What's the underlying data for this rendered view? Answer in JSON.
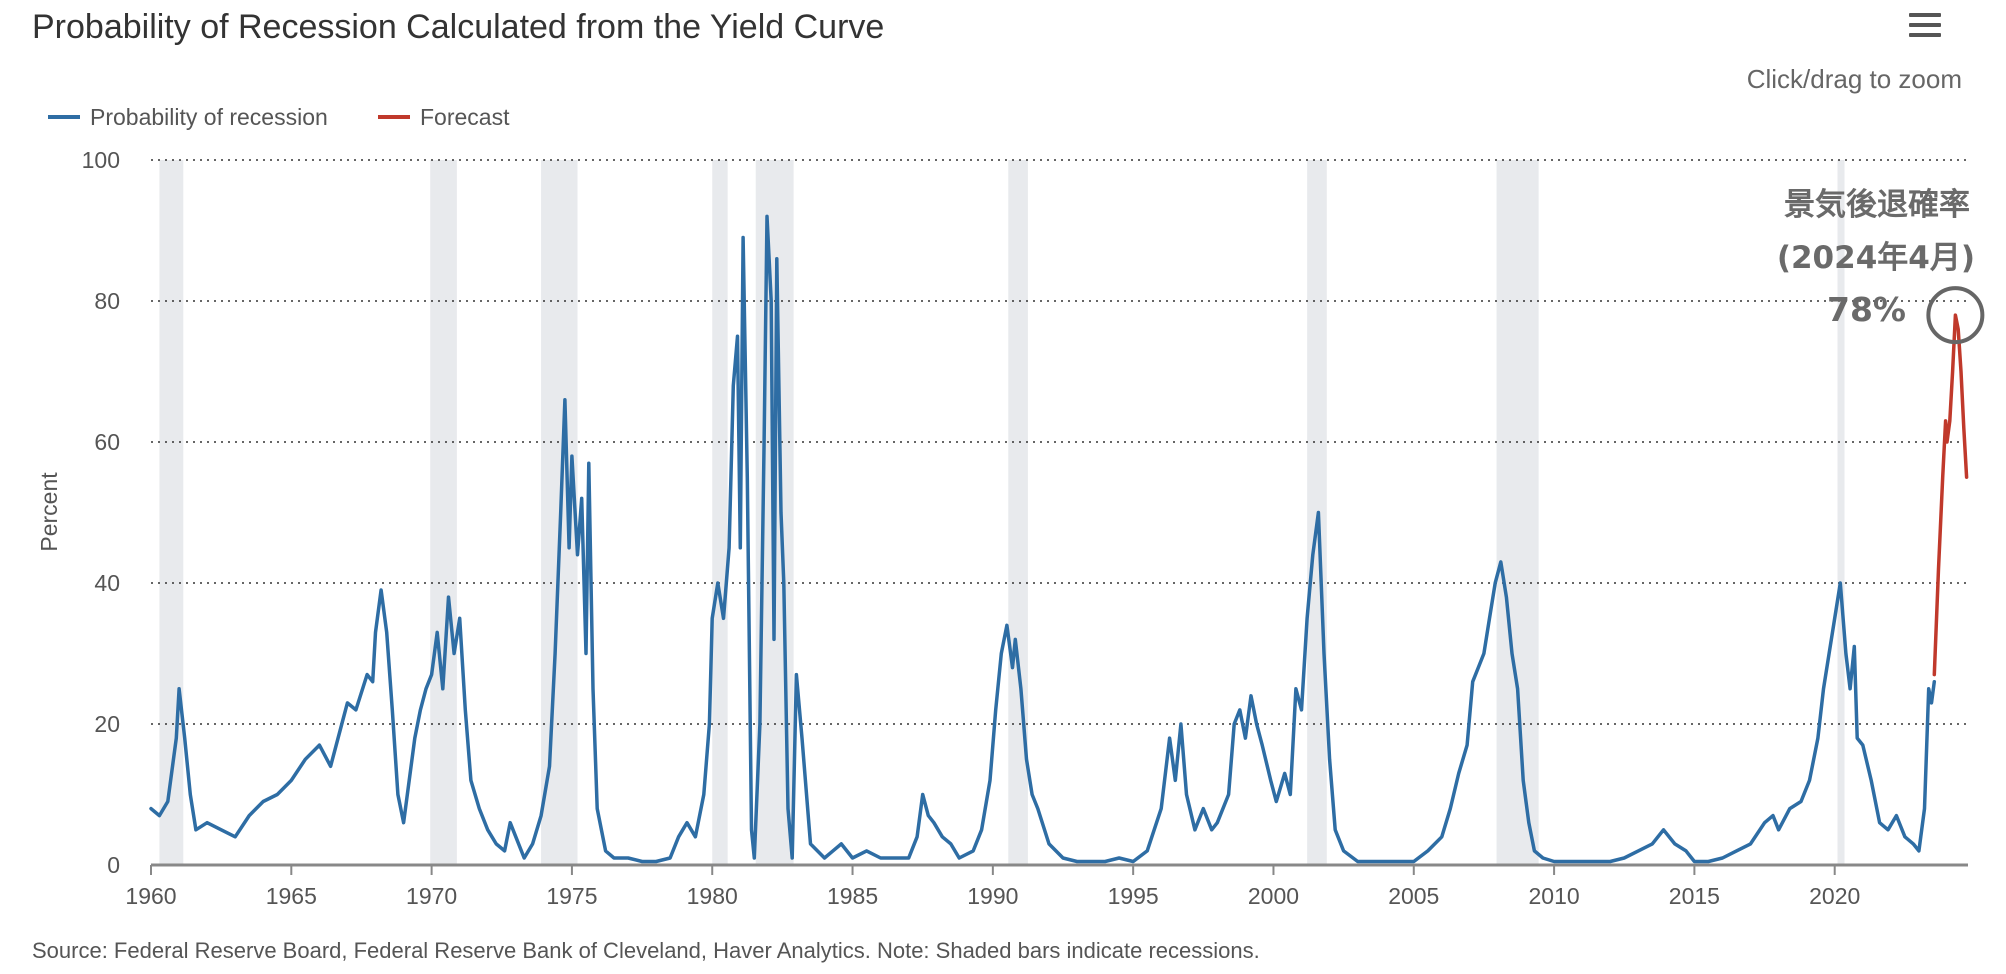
{
  "page": {
    "menu_icon": "hamburger-menu-icon",
    "zoom_hint": "Click/drag to zoom",
    "source_note": "Source: Federal Reserve Board, Federal Reserve Bank of Cleveland, Haver Analytics. Note: Shaded bars indicate recessions."
  },
  "chart_data": {
    "type": "line",
    "title": "Probability of Recession Calculated from the Yield Curve",
    "ylabel": "Percent",
    "xlabel": "",
    "xlim": [
      1960,
      2024.75
    ],
    "ylim": [
      0,
      100
    ],
    "x_ticks": [
      "1960",
      "1965",
      "1970",
      "1975",
      "1980",
      "1985",
      "1990",
      "1995",
      "2000",
      "2005",
      "2010",
      "2015",
      "2020"
    ],
    "y_ticks": [
      "0",
      "20",
      "40",
      "60",
      "80",
      "100"
    ],
    "grid": "horizontal dotted",
    "legend": "top-left",
    "colors": {
      "probability": "#2e6da4",
      "forecast": "#c0392b",
      "recession_band": "#e8eaed",
      "annotation": "#666666"
    },
    "recessions": [
      [
        1960.3,
        1961.15
      ],
      [
        1969.95,
        1970.9
      ],
      [
        1973.9,
        1975.2
      ],
      [
        1980.0,
        1980.55
      ],
      [
        1981.55,
        1982.9
      ],
      [
        1990.55,
        1991.25
      ],
      [
        2001.2,
        2001.9
      ],
      [
        2007.95,
        2009.45
      ],
      [
        2020.1,
        2020.35
      ]
    ],
    "series": [
      {
        "name": "Probability of recession",
        "color": "#2e6da4",
        "points": [
          [
            1960.0,
            8
          ],
          [
            1960.3,
            7
          ],
          [
            1960.6,
            9
          ],
          [
            1960.9,
            18
          ],
          [
            1961.0,
            25
          ],
          [
            1961.2,
            18
          ],
          [
            1961.4,
            10
          ],
          [
            1961.6,
            5
          ],
          [
            1962.0,
            6
          ],
          [
            1962.5,
            5
          ],
          [
            1963.0,
            4
          ],
          [
            1963.5,
            7
          ],
          [
            1964.0,
            9
          ],
          [
            1964.5,
            10
          ],
          [
            1965.0,
            12
          ],
          [
            1965.5,
            15
          ],
          [
            1966.0,
            17
          ],
          [
            1966.4,
            14
          ],
          [
            1966.8,
            20
          ],
          [
            1967.0,
            23
          ],
          [
            1967.3,
            22
          ],
          [
            1967.7,
            27
          ],
          [
            1967.9,
            26
          ],
          [
            1968.0,
            33
          ],
          [
            1968.2,
            39
          ],
          [
            1968.4,
            33
          ],
          [
            1968.6,
            22
          ],
          [
            1968.8,
            10
          ],
          [
            1969.0,
            6
          ],
          [
            1969.2,
            12
          ],
          [
            1969.4,
            18
          ],
          [
            1969.6,
            22
          ],
          [
            1969.8,
            25
          ],
          [
            1970.0,
            27
          ],
          [
            1970.2,
            33
          ],
          [
            1970.4,
            25
          ],
          [
            1970.6,
            38
          ],
          [
            1970.8,
            30
          ],
          [
            1971.0,
            35
          ],
          [
            1971.2,
            22
          ],
          [
            1971.4,
            12
          ],
          [
            1971.7,
            8
          ],
          [
            1972.0,
            5
          ],
          [
            1972.3,
            3
          ],
          [
            1972.6,
            2
          ],
          [
            1972.8,
            6
          ],
          [
            1973.0,
            4
          ],
          [
            1973.3,
            1
          ],
          [
            1973.6,
            3
          ],
          [
            1973.9,
            7
          ],
          [
            1974.2,
            14
          ],
          [
            1974.4,
            30
          ],
          [
            1974.6,
            50
          ],
          [
            1974.75,
            66
          ],
          [
            1974.9,
            45
          ],
          [
            1975.0,
            58
          ],
          [
            1975.2,
            44
          ],
          [
            1975.35,
            52
          ],
          [
            1975.5,
            30
          ],
          [
            1975.6,
            57
          ],
          [
            1975.75,
            25
          ],
          [
            1975.9,
            8
          ],
          [
            1976.2,
            2
          ],
          [
            1976.5,
            1
          ],
          [
            1977.0,
            1
          ],
          [
            1977.5,
            0.5
          ],
          [
            1978.0,
            0.5
          ],
          [
            1978.5,
            1
          ],
          [
            1978.8,
            4
          ],
          [
            1979.1,
            6
          ],
          [
            1979.4,
            4
          ],
          [
            1979.7,
            10
          ],
          [
            1979.9,
            20
          ],
          [
            1980.0,
            35
          ],
          [
            1980.2,
            40
          ],
          [
            1980.4,
            35
          ],
          [
            1980.6,
            45
          ],
          [
            1980.75,
            68
          ],
          [
            1980.9,
            75
          ],
          [
            1981.0,
            45
          ],
          [
            1981.1,
            89
          ],
          [
            1981.25,
            55
          ],
          [
            1981.4,
            5
          ],
          [
            1981.5,
            1
          ],
          [
            1981.7,
            20
          ],
          [
            1981.85,
            60
          ],
          [
            1981.95,
            92
          ],
          [
            1982.1,
            80
          ],
          [
            1982.2,
            32
          ],
          [
            1982.3,
            86
          ],
          [
            1982.45,
            50
          ],
          [
            1982.55,
            40
          ],
          [
            1982.7,
            8
          ],
          [
            1982.85,
            1
          ],
          [
            1983.0,
            27
          ],
          [
            1983.2,
            18
          ],
          [
            1983.5,
            3
          ],
          [
            1984.0,
            1
          ],
          [
            1984.3,
            2
          ],
          [
            1984.6,
            3
          ],
          [
            1985.0,
            1
          ],
          [
            1985.5,
            2
          ],
          [
            1986.0,
            1
          ],
          [
            1986.5,
            1
          ],
          [
            1987.0,
            1
          ],
          [
            1987.3,
            4
          ],
          [
            1987.5,
            10
          ],
          [
            1987.7,
            7
          ],
          [
            1987.9,
            6
          ],
          [
            1988.2,
            4
          ],
          [
            1988.5,
            3
          ],
          [
            1988.8,
            1
          ],
          [
            1989.3,
            2
          ],
          [
            1989.6,
            5
          ],
          [
            1989.9,
            12
          ],
          [
            1990.1,
            22
          ],
          [
            1990.3,
            30
          ],
          [
            1990.5,
            34
          ],
          [
            1990.7,
            28
          ],
          [
            1990.8,
            32
          ],
          [
            1991.0,
            25
          ],
          [
            1991.2,
            15
          ],
          [
            1991.4,
            10
          ],
          [
            1991.6,
            8
          ],
          [
            1992.0,
            3
          ],
          [
            1992.5,
            1
          ],
          [
            1993.0,
            0.5
          ],
          [
            1994.0,
            0.5
          ],
          [
            1994.5,
            1
          ],
          [
            1995.0,
            0.5
          ],
          [
            1995.5,
            2
          ],
          [
            1996.0,
            8
          ],
          [
            1996.3,
            18
          ],
          [
            1996.5,
            12
          ],
          [
            1996.7,
            20
          ],
          [
            1996.9,
            10
          ],
          [
            1997.2,
            5
          ],
          [
            1997.5,
            8
          ],
          [
            1997.8,
            5
          ],
          [
            1998.0,
            6
          ],
          [
            1998.4,
            10
          ],
          [
            1998.6,
            20
          ],
          [
            1998.8,
            22
          ],
          [
            1999.0,
            18
          ],
          [
            1999.2,
            24
          ],
          [
            1999.4,
            20
          ],
          [
            1999.6,
            17
          ],
          [
            1999.9,
            12
          ],
          [
            2000.1,
            9
          ],
          [
            2000.4,
            13
          ],
          [
            2000.6,
            10
          ],
          [
            2000.8,
            25
          ],
          [
            2001.0,
            22
          ],
          [
            2001.2,
            35
          ],
          [
            2001.4,
            44
          ],
          [
            2001.6,
            50
          ],
          [
            2001.8,
            30
          ],
          [
            2002.0,
            15
          ],
          [
            2002.2,
            5
          ],
          [
            2002.5,
            2
          ],
          [
            2003.0,
            0.5
          ],
          [
            2004.0,
            0.5
          ],
          [
            2005.0,
            0.5
          ],
          [
            2005.5,
            2
          ],
          [
            2006.0,
            4
          ],
          [
            2006.3,
            8
          ],
          [
            2006.6,
            13
          ],
          [
            2006.9,
            17
          ],
          [
            2007.1,
            26
          ],
          [
            2007.3,
            28
          ],
          [
            2007.5,
            30
          ],
          [
            2007.7,
            35
          ],
          [
            2007.9,
            40
          ],
          [
            2008.1,
            43
          ],
          [
            2008.3,
            38
          ],
          [
            2008.5,
            30
          ],
          [
            2008.7,
            25
          ],
          [
            2008.9,
            12
          ],
          [
            2009.1,
            6
          ],
          [
            2009.3,
            2
          ],
          [
            2009.6,
            1
          ],
          [
            2010.0,
            0.5
          ],
          [
            2011.0,
            0.5
          ],
          [
            2012.0,
            0.5
          ],
          [
            2012.5,
            1
          ],
          [
            2013.0,
            2
          ],
          [
            2013.5,
            3
          ],
          [
            2013.9,
            5
          ],
          [
            2014.3,
            3
          ],
          [
            2014.7,
            2
          ],
          [
            2015.0,
            0.5
          ],
          [
            2015.5,
            0.5
          ],
          [
            2016.0,
            1
          ],
          [
            2016.5,
            2
          ],
          [
            2017.0,
            3
          ],
          [
            2017.5,
            6
          ],
          [
            2017.8,
            7
          ],
          [
            2018.0,
            5
          ],
          [
            2018.4,
            8
          ],
          [
            2018.8,
            9
          ],
          [
            2019.1,
            12
          ],
          [
            2019.4,
            18
          ],
          [
            2019.6,
            25
          ],
          [
            2019.8,
            30
          ],
          [
            2020.0,
            35
          ],
          [
            2020.2,
            40
          ],
          [
            2020.4,
            30
          ],
          [
            2020.55,
            25
          ],
          [
            2020.7,
            31
          ],
          [
            2020.8,
            18
          ],
          [
            2021.0,
            17
          ],
          [
            2021.3,
            12
          ],
          [
            2021.6,
            6
          ],
          [
            2021.9,
            5
          ],
          [
            2022.2,
            7
          ],
          [
            2022.5,
            4
          ],
          [
            2022.8,
            3
          ],
          [
            2023.0,
            2
          ],
          [
            2023.2,
            8
          ],
          [
            2023.35,
            25
          ],
          [
            2023.45,
            23
          ],
          [
            2023.55,
            26
          ]
        ]
      },
      {
        "name": "Forecast",
        "color": "#c0392b",
        "points": [
          [
            2023.55,
            27
          ],
          [
            2023.7,
            42
          ],
          [
            2023.85,
            55
          ],
          [
            2023.95,
            63
          ],
          [
            2024.0,
            60
          ],
          [
            2024.1,
            63
          ],
          [
            2024.2,
            70
          ],
          [
            2024.3,
            78
          ],
          [
            2024.4,
            76
          ],
          [
            2024.5,
            70
          ],
          [
            2024.6,
            62
          ],
          [
            2024.7,
            55
          ]
        ]
      }
    ],
    "annotation": {
      "line1": "景気後退確率",
      "line2": "(2024年4月)",
      "line3": "78%",
      "at": [
        2024.3,
        78
      ]
    }
  }
}
